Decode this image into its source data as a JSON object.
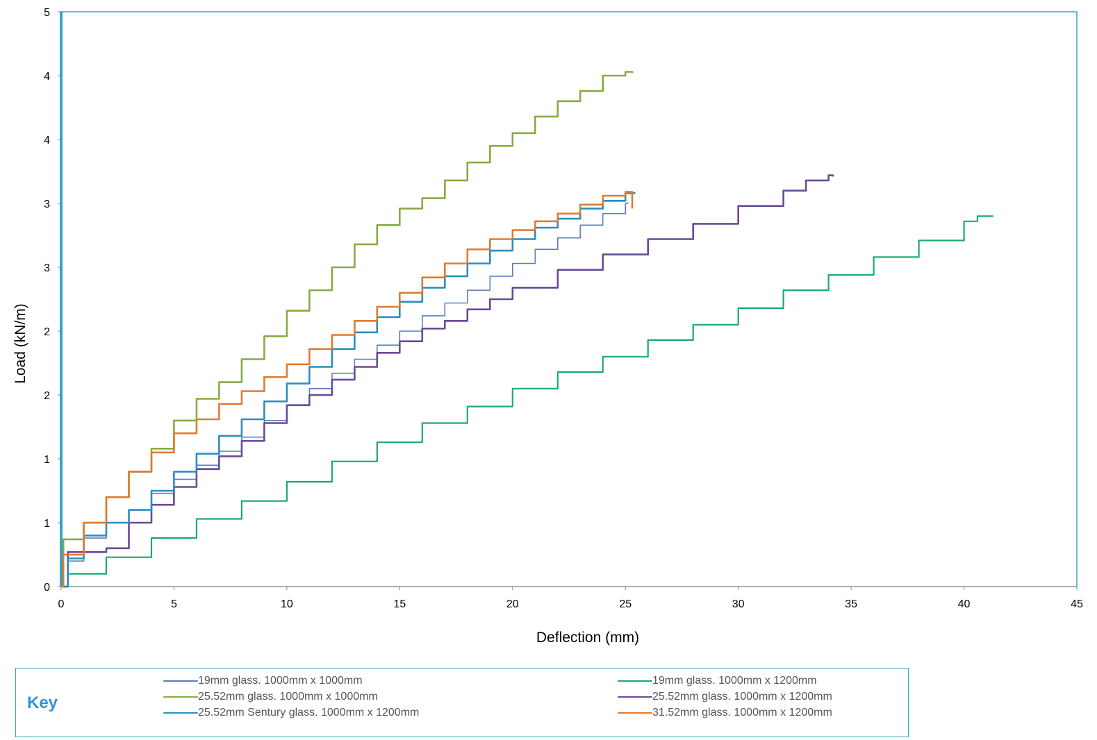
{
  "chart_data": {
    "type": "line",
    "title": "",
    "xlabel": "Deflection (mm)",
    "ylabel": "Load (kN/m)",
    "xlim": [
      0,
      45
    ],
    "ylim": [
      0,
      4.5
    ],
    "x_ticks": [
      0,
      5,
      10,
      15,
      20,
      25,
      30,
      35,
      40,
      45
    ],
    "y_tick_values": [
      0,
      0.5,
      1,
      1.5,
      2,
      2.5,
      3,
      3.5,
      4,
      4.5
    ],
    "y_tick_labels": [
      "0",
      "1",
      "1",
      "2",
      "2",
      "3",
      "3",
      "4",
      "4",
      "5"
    ],
    "grid": false,
    "legend_title": "Key",
    "legend_position": "bottom",
    "series": [
      {
        "name": "19mm glass. 1000mm x 1000mm",
        "color": "#5b7fbf",
        "width": 1.6,
        "x": [
          0,
          0.3,
          1,
          2,
          3,
          4,
          5,
          6,
          7,
          8,
          9,
          10,
          11,
          12,
          13,
          14,
          15,
          16,
          17,
          18,
          19,
          20,
          21,
          22,
          23,
          24,
          25,
          25.1
        ],
        "y": [
          0,
          0.2,
          0.38,
          0.5,
          0.6,
          0.73,
          0.84,
          0.95,
          1.06,
          1.17,
          1.3,
          1.42,
          1.55,
          1.67,
          1.78,
          1.89,
          2.0,
          2.12,
          2.22,
          2.32,
          2.43,
          2.53,
          2.64,
          2.73,
          2.83,
          2.92,
          3.0,
          3.01
        ]
      },
      {
        "name": "19mm glass. 1000mm x 1200mm",
        "color": "#1aab6d",
        "width": 2.2,
        "x": [
          0,
          0.3,
          2,
          4,
          6,
          8,
          10,
          12,
          14,
          16,
          18,
          20,
          22,
          24,
          26,
          28,
          30,
          32,
          34,
          36,
          38,
          40,
          40.6,
          41.3
        ],
        "y": [
          0,
          0.1,
          0.23,
          0.38,
          0.53,
          0.67,
          0.82,
          0.98,
          1.13,
          1.28,
          1.41,
          1.55,
          1.68,
          1.8,
          1.93,
          2.05,
          2.18,
          2.32,
          2.44,
          2.58,
          2.71,
          2.86,
          2.9,
          2.9
        ]
      },
      {
        "name": "25.52mm glass. 1000mm x 1000mm",
        "color": "#86ac42",
        "width": 2.6,
        "x": [
          0,
          0.1,
          1,
          2,
          3,
          4,
          5,
          6,
          7,
          8,
          9,
          10,
          11,
          12,
          13,
          14,
          15,
          16,
          17,
          18,
          19,
          20,
          21,
          22,
          23,
          24,
          25,
          25.3
        ],
        "y": [
          0,
          0.37,
          0.5,
          0.7,
          0.9,
          1.08,
          1.3,
          1.47,
          1.6,
          1.78,
          1.96,
          2.16,
          2.32,
          2.5,
          2.68,
          2.83,
          2.96,
          3.04,
          3.18,
          3.32,
          3.45,
          3.55,
          3.68,
          3.8,
          3.88,
          4.0,
          4.03,
          4.02
        ]
      },
      {
        "name": "25.52mm glass. 1000mm x 1200mm",
        "color": "#6a4a96",
        "width": 2.6,
        "x": [
          0,
          0.3,
          2,
          3,
          4,
          5,
          6,
          7,
          8,
          9,
          10,
          11,
          12,
          13,
          14,
          15,
          16,
          17,
          18,
          19,
          20,
          22,
          24,
          26,
          28,
          30,
          32,
          33,
          34,
          34.2
        ],
        "y": [
          0,
          0.27,
          0.3,
          0.5,
          0.64,
          0.78,
          0.92,
          1.02,
          1.14,
          1.28,
          1.42,
          1.5,
          1.62,
          1.72,
          1.83,
          1.92,
          2.02,
          2.08,
          2.17,
          2.25,
          2.34,
          2.48,
          2.6,
          2.72,
          2.84,
          2.98,
          3.1,
          3.18,
          3.22,
          3.21
        ]
      },
      {
        "name": "25.52mm Sentury glass. 1000mm x 1200mm",
        "color": "#2c8ebd",
        "width": 2.6,
        "x": [
          0,
          0.3,
          1,
          2,
          3,
          4,
          5,
          6,
          7,
          8,
          9,
          10,
          11,
          12,
          13,
          14,
          15,
          16,
          17,
          18,
          19,
          20,
          21,
          22,
          23,
          24,
          25,
          25.4
        ],
        "y": [
          0,
          0.22,
          0.4,
          0.5,
          0.6,
          0.75,
          0.9,
          1.04,
          1.18,
          1.31,
          1.45,
          1.59,
          1.72,
          1.86,
          1.99,
          2.11,
          2.23,
          2.34,
          2.43,
          2.53,
          2.63,
          2.72,
          2.81,
          2.88,
          2.96,
          3.02,
          3.08,
          3.09
        ]
      },
      {
        "name": "31.52mm glass. 1000mm x 1200mm",
        "color": "#e07b2e",
        "width": 2.6,
        "x": [
          0,
          0.1,
          1,
          2,
          3,
          4,
          5,
          6,
          7,
          8,
          9,
          10,
          11,
          12,
          13,
          14,
          15,
          16,
          17,
          18,
          19,
          20,
          21,
          22,
          23,
          24,
          25,
          25.3
        ],
        "y": [
          0,
          0.25,
          0.5,
          0.7,
          0.9,
          1.05,
          1.2,
          1.31,
          1.43,
          1.53,
          1.64,
          1.74,
          1.86,
          1.97,
          2.08,
          2.19,
          2.3,
          2.42,
          2.53,
          2.64,
          2.72,
          2.79,
          2.86,
          2.92,
          2.99,
          3.06,
          3.09,
          2.96
        ]
      }
    ]
  }
}
